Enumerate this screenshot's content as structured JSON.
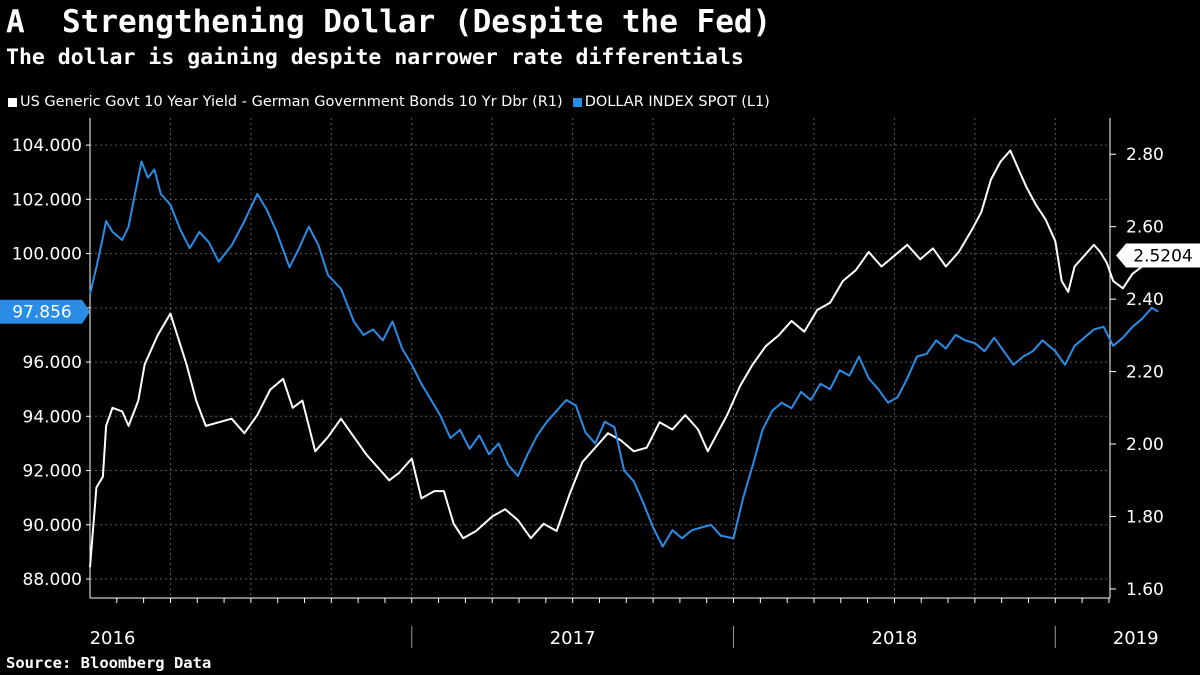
{
  "header": {
    "title": "A  Strengthening Dollar (Despite the Fed)",
    "subtitle": "The dollar is gaining despite narrower rate differentials"
  },
  "source": "Source: Bloomberg Data",
  "colors": {
    "background": "#000000",
    "spread_line": "#ffffff",
    "dollar_line": "#2b8ce6",
    "grid": "#5a5a5a"
  },
  "chart_data": {
    "type": "line",
    "title": "A  Strengthening Dollar (Despite the Fed)",
    "subtitle": "The dollar is gaining despite narrower rate differentials",
    "legend_position": "top-left",
    "grid": true,
    "x_range": [
      2016.0,
      2019.17
    ],
    "x_tick_labels": [
      {
        "label": "2016",
        "x": 2016.0
      },
      {
        "label": "2017",
        "x": 2017.0
      },
      {
        "label": "2018",
        "x": 2018.0
      },
      {
        "label": "2019",
        "x": 2019.0
      }
    ],
    "left_axis": {
      "min": 87.3,
      "max": 105.0,
      "ticks": [
        88,
        90,
        92,
        94,
        96,
        98,
        100,
        102,
        104
      ],
      "tick_labels": [
        "88.000",
        "90.000",
        "92.000",
        "94.000",
        "96.000",
        "98.000",
        "100.000",
        "102.000",
        "104.000"
      ]
    },
    "right_axis": {
      "min": 1.575,
      "max": 2.9,
      "ticks": [
        1.6,
        1.8,
        2.0,
        2.2,
        2.4,
        2.6,
        2.8
      ],
      "tick_labels": [
        "1.60",
        "1.80",
        "2.00",
        "2.20",
        "2.40",
        "2.60",
        "2.80"
      ]
    },
    "series": [
      {
        "name": "US Generic Govt 10 Year Yield - German Government Bonds 10 Yr Dbr (R1)",
        "axis": "right",
        "color": "#ffffff",
        "last_value_label": "2.5204",
        "points": [
          [
            2016.0,
            1.66
          ],
          [
            2016.02,
            1.88
          ],
          [
            2016.04,
            1.91
          ],
          [
            2016.05,
            2.05
          ],
          [
            2016.07,
            2.1
          ],
          [
            2016.1,
            2.09
          ],
          [
            2016.12,
            2.05
          ],
          [
            2016.15,
            2.12
          ],
          [
            2016.17,
            2.22
          ],
          [
            2016.21,
            2.3
          ],
          [
            2016.25,
            2.36
          ],
          [
            2016.3,
            2.22
          ],
          [
            2016.33,
            2.12
          ],
          [
            2016.36,
            2.05
          ],
          [
            2016.4,
            2.06
          ],
          [
            2016.44,
            2.07
          ],
          [
            2016.48,
            2.03
          ],
          [
            2016.52,
            2.08
          ],
          [
            2016.56,
            2.15
          ],
          [
            2016.6,
            2.18
          ],
          [
            2016.63,
            2.1
          ],
          [
            2016.66,
            2.12
          ],
          [
            2016.7,
            1.98
          ],
          [
            2016.74,
            2.02
          ],
          [
            2016.78,
            2.07
          ],
          [
            2016.82,
            2.02
          ],
          [
            2016.86,
            1.97
          ],
          [
            2016.9,
            1.93
          ],
          [
            2016.93,
            1.9
          ],
          [
            2016.96,
            1.92
          ],
          [
            2017.0,
            1.96
          ],
          [
            2017.03,
            1.85
          ],
          [
            2017.07,
            1.87
          ],
          [
            2017.1,
            1.87
          ],
          [
            2017.13,
            1.78
          ],
          [
            2017.16,
            1.74
          ],
          [
            2017.2,
            1.76
          ],
          [
            2017.25,
            1.8
          ],
          [
            2017.29,
            1.82
          ],
          [
            2017.33,
            1.79
          ],
          [
            2017.37,
            1.74
          ],
          [
            2017.41,
            1.78
          ],
          [
            2017.45,
            1.76
          ],
          [
            2017.49,
            1.86
          ],
          [
            2017.53,
            1.95
          ],
          [
            2017.57,
            1.99
          ],
          [
            2017.61,
            2.03
          ],
          [
            2017.65,
            2.01
          ],
          [
            2017.69,
            1.98
          ],
          [
            2017.73,
            1.99
          ],
          [
            2017.77,
            2.06
          ],
          [
            2017.81,
            2.04
          ],
          [
            2017.85,
            2.08
          ],
          [
            2017.89,
            2.04
          ],
          [
            2017.92,
            1.98
          ],
          [
            2017.95,
            2.03
          ],
          [
            2017.98,
            2.08
          ],
          [
            2018.02,
            2.16
          ],
          [
            2018.06,
            2.22
          ],
          [
            2018.1,
            2.27
          ],
          [
            2018.14,
            2.3
          ],
          [
            2018.18,
            2.34
          ],
          [
            2018.22,
            2.31
          ],
          [
            2018.26,
            2.37
          ],
          [
            2018.3,
            2.39
          ],
          [
            2018.34,
            2.45
          ],
          [
            2018.38,
            2.48
          ],
          [
            2018.42,
            2.53
          ],
          [
            2018.46,
            2.49
          ],
          [
            2018.5,
            2.52
          ],
          [
            2018.54,
            2.55
          ],
          [
            2018.58,
            2.51
          ],
          [
            2018.62,
            2.54
          ],
          [
            2018.66,
            2.49
          ],
          [
            2018.7,
            2.53
          ],
          [
            2018.74,
            2.59
          ],
          [
            2018.77,
            2.64
          ],
          [
            2018.8,
            2.73
          ],
          [
            2018.83,
            2.78
          ],
          [
            2018.86,
            2.81
          ],
          [
            2018.88,
            2.77
          ],
          [
            2018.91,
            2.71
          ],
          [
            2018.94,
            2.66
          ],
          [
            2018.97,
            2.62
          ],
          [
            2019.0,
            2.56
          ],
          [
            2019.02,
            2.45
          ],
          [
            2019.04,
            2.42
          ],
          [
            2019.06,
            2.49
          ],
          [
            2019.09,
            2.52
          ],
          [
            2019.12,
            2.55
          ],
          [
            2019.14,
            2.53
          ],
          [
            2019.16,
            2.5
          ],
          [
            2019.18,
            2.45
          ],
          [
            2019.21,
            2.43
          ],
          [
            2019.24,
            2.47
          ],
          [
            2019.27,
            2.49
          ],
          [
            2019.3,
            2.52
          ],
          [
            2019.32,
            2.5204
          ]
        ]
      },
      {
        "name": "DOLLAR INDEX SPOT  (L1)",
        "axis": "left",
        "color": "#2b8ce6",
        "last_value_label": "97.856",
        "points": [
          [
            2016.0,
            98.5
          ],
          [
            2016.02,
            99.5
          ],
          [
            2016.04,
            100.6
          ],
          [
            2016.05,
            101.2
          ],
          [
            2016.07,
            100.8
          ],
          [
            2016.1,
            100.5
          ],
          [
            2016.12,
            101.0
          ],
          [
            2016.14,
            102.2
          ],
          [
            2016.16,
            103.4
          ],
          [
            2016.18,
            102.8
          ],
          [
            2016.2,
            103.1
          ],
          [
            2016.22,
            102.2
          ],
          [
            2016.25,
            101.8
          ],
          [
            2016.28,
            100.9
          ],
          [
            2016.31,
            100.2
          ],
          [
            2016.34,
            100.8
          ],
          [
            2016.37,
            100.4
          ],
          [
            2016.4,
            99.7
          ],
          [
            2016.44,
            100.3
          ],
          [
            2016.48,
            101.2
          ],
          [
            2016.52,
            102.2
          ],
          [
            2016.55,
            101.6
          ],
          [
            2016.58,
            100.8
          ],
          [
            2016.62,
            99.5
          ],
          [
            2016.65,
            100.2
          ],
          [
            2016.68,
            101.0
          ],
          [
            2016.71,
            100.3
          ],
          [
            2016.74,
            99.2
          ],
          [
            2016.78,
            98.7
          ],
          [
            2016.82,
            97.5
          ],
          [
            2016.85,
            97.0
          ],
          [
            2016.88,
            97.2
          ],
          [
            2016.91,
            96.8
          ],
          [
            2016.94,
            97.5
          ],
          [
            2016.97,
            96.5
          ],
          [
            2017.0,
            95.9
          ],
          [
            2017.03,
            95.2
          ],
          [
            2017.06,
            94.6
          ],
          [
            2017.09,
            94.0
          ],
          [
            2017.12,
            93.2
          ],
          [
            2017.15,
            93.5
          ],
          [
            2017.18,
            92.8
          ],
          [
            2017.21,
            93.3
          ],
          [
            2017.24,
            92.6
          ],
          [
            2017.27,
            93.0
          ],
          [
            2017.3,
            92.2
          ],
          [
            2017.33,
            91.8
          ],
          [
            2017.36,
            92.6
          ],
          [
            2017.39,
            93.3
          ],
          [
            2017.42,
            93.8
          ],
          [
            2017.45,
            94.2
          ],
          [
            2017.48,
            94.6
          ],
          [
            2017.51,
            94.4
          ],
          [
            2017.54,
            93.4
          ],
          [
            2017.57,
            93.0
          ],
          [
            2017.6,
            93.8
          ],
          [
            2017.63,
            93.6
          ],
          [
            2017.66,
            92.0
          ],
          [
            2017.69,
            91.6
          ],
          [
            2017.72,
            90.8
          ],
          [
            2017.75,
            89.9
          ],
          [
            2017.78,
            89.2
          ],
          [
            2017.81,
            89.8
          ],
          [
            2017.84,
            89.5
          ],
          [
            2017.87,
            89.8
          ],
          [
            2017.9,
            89.9
          ],
          [
            2017.93,
            90.0
          ],
          [
            2017.96,
            89.6
          ],
          [
            2018.0,
            89.5
          ],
          [
            2018.03,
            91.0
          ],
          [
            2018.06,
            92.2
          ],
          [
            2018.09,
            93.5
          ],
          [
            2018.12,
            94.2
          ],
          [
            2018.15,
            94.5
          ],
          [
            2018.18,
            94.3
          ],
          [
            2018.21,
            94.9
          ],
          [
            2018.24,
            94.6
          ],
          [
            2018.27,
            95.2
          ],
          [
            2018.3,
            95.0
          ],
          [
            2018.33,
            95.7
          ],
          [
            2018.36,
            95.5
          ],
          [
            2018.39,
            96.2
          ],
          [
            2018.42,
            95.4
          ],
          [
            2018.45,
            95.0
          ],
          [
            2018.48,
            94.5
          ],
          [
            2018.51,
            94.7
          ],
          [
            2018.54,
            95.4
          ],
          [
            2018.57,
            96.2
          ],
          [
            2018.6,
            96.3
          ],
          [
            2018.63,
            96.8
          ],
          [
            2018.66,
            96.5
          ],
          [
            2018.69,
            97.0
          ],
          [
            2018.72,
            96.8
          ],
          [
            2018.75,
            96.7
          ],
          [
            2018.78,
            96.4
          ],
          [
            2018.81,
            96.9
          ],
          [
            2018.84,
            96.4
          ],
          [
            2018.87,
            95.9
          ],
          [
            2018.9,
            96.2
          ],
          [
            2018.93,
            96.4
          ],
          [
            2018.96,
            96.8
          ],
          [
            2019.0,
            96.4
          ],
          [
            2019.03,
            95.9
          ],
          [
            2019.06,
            96.6
          ],
          [
            2019.09,
            96.9
          ],
          [
            2019.12,
            97.2
          ],
          [
            2019.15,
            97.3
          ],
          [
            2019.18,
            96.6
          ],
          [
            2019.21,
            96.9
          ],
          [
            2019.24,
            97.3
          ],
          [
            2019.27,
            97.6
          ],
          [
            2019.3,
            98.0
          ],
          [
            2019.32,
            97.856
          ]
        ]
      }
    ]
  }
}
